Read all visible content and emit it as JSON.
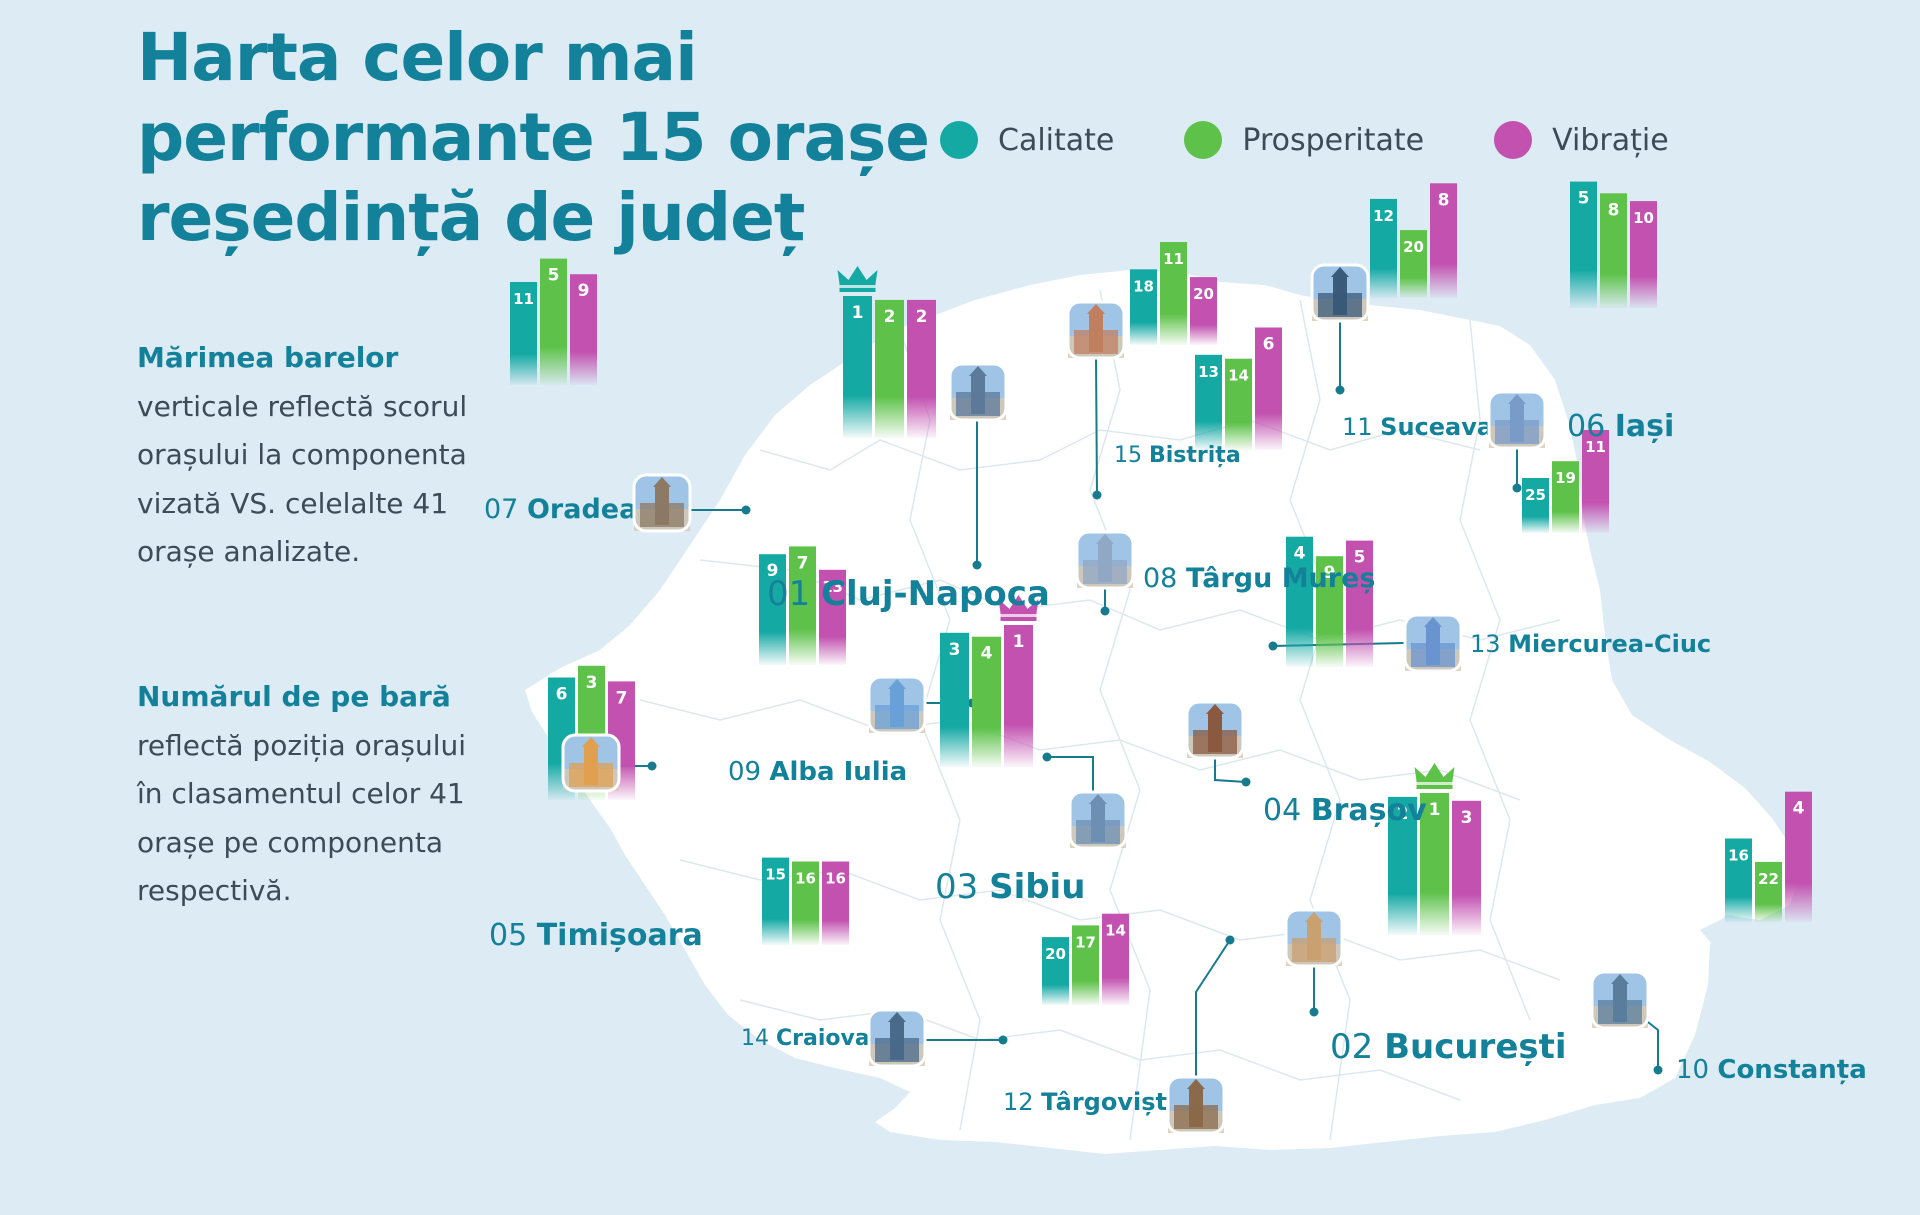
{
  "title": {
    "line1": "Harta celor mai",
    "line2": "performante 15 orașe",
    "line3": "reședință de județ"
  },
  "legend": [
    {
      "label": "Calitate",
      "color": "#15a9a4"
    },
    {
      "label": "Prosperitate",
      "color": "#5ec24a"
    },
    {
      "label": "Vibrație",
      "color": "#c251b0"
    }
  ],
  "side_notes": {
    "note1_bold": "Mărimea barelor",
    "note1_rest": "verticale reflectă scorul orașului la componenta vizată VS. celelalte 41 orașe analizate.",
    "note2_bold": "Numărul de pe bară",
    "note2_rest": "reflectă poziția orașului în clasamentul celor 41 orașe pe componenta respectivă."
  },
  "chart_data": {
    "type": "bar",
    "categories": [
      "Calitate",
      "Prosperitate",
      "Vibrație"
    ],
    "cities": [
      {
        "num": "01",
        "name": "Cluj-Napoca",
        "ranks": [
          1,
          2,
          2
        ]
      },
      {
        "num": "02",
        "name": "București",
        "ranks": [
          2,
          1,
          3
        ]
      },
      {
        "num": "03",
        "name": "Sibiu",
        "ranks": [
          3,
          4,
          1
        ]
      },
      {
        "num": "04",
        "name": "Brașov",
        "ranks": [
          4,
          9,
          5
        ]
      },
      {
        "num": "05",
        "name": "Timișoara",
        "ranks": [
          6,
          3,
          7
        ]
      },
      {
        "num": "06",
        "name": "Iași",
        "ranks": [
          5,
          8,
          10
        ]
      },
      {
        "num": "07",
        "name": "Oradea",
        "ranks": [
          11,
          5,
          9
        ]
      },
      {
        "num": "08",
        "name": "Târgu Mureș",
        "ranks": [
          13,
          14,
          6
        ]
      },
      {
        "num": "09",
        "name": "Alba Iulia",
        "ranks": [
          9,
          7,
          13
        ]
      },
      {
        "num": "10",
        "name": "Constanța",
        "ranks": [
          16,
          22,
          4
        ]
      },
      {
        "num": "11",
        "name": "Suceava",
        "ranks": [
          12,
          20,
          8
        ]
      },
      {
        "num": "12",
        "name": "Târgoviște",
        "ranks": [
          20,
          17,
          14
        ]
      },
      {
        "num": "13",
        "name": "Miercurea-Ciuc",
        "ranks": [
          25,
          19,
          11
        ]
      },
      {
        "num": "14",
        "name": "Craiova",
        "ranks": [
          15,
          16,
          16
        ]
      },
      {
        "num": "15",
        "name": "Bistrița",
        "ranks": [
          18,
          11,
          20
        ]
      }
    ]
  }
}
